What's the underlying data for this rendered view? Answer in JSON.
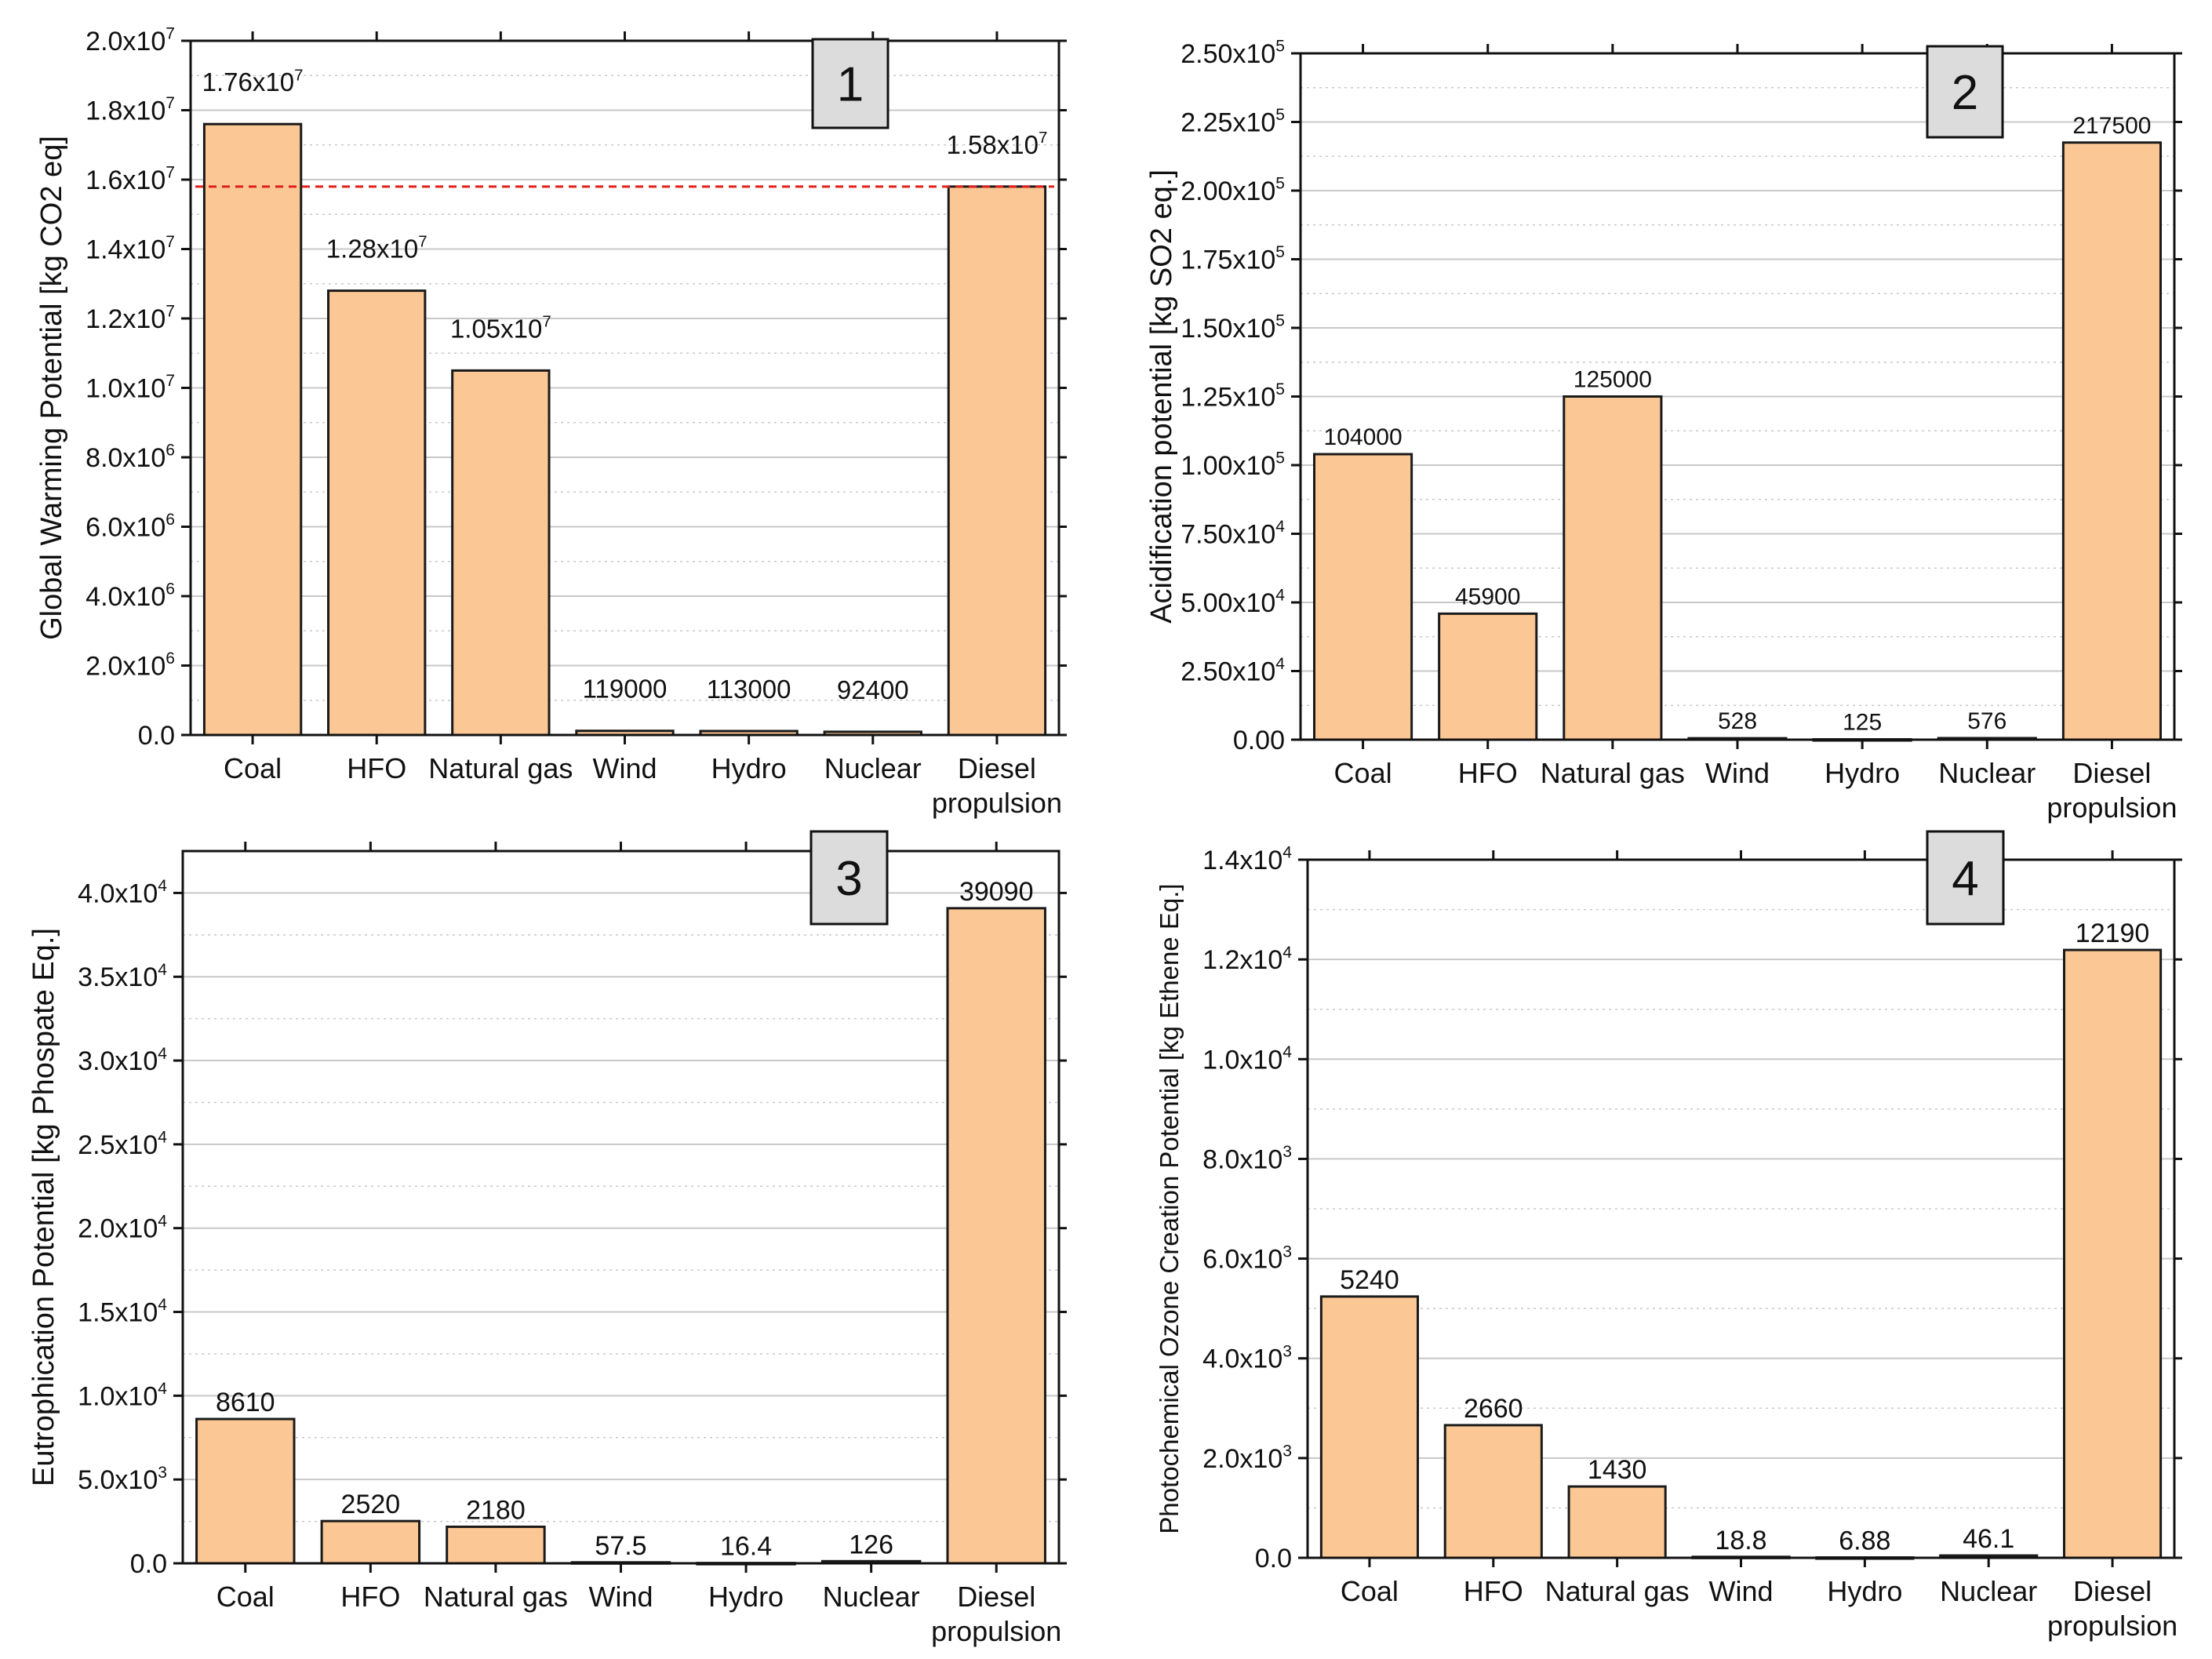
{
  "colors": {
    "bar": "#FBC794",
    "bar_stroke": "#1a1a1a",
    "grid": "#c8c8c8",
    "ref_line": "#e0201b",
    "badge_bg": "#dcdcdc"
  },
  "chart_data": [
    {
      "id": "gwp",
      "type": "bar",
      "badge": "1",
      "ylabel": "Global Warming Potential [kg CO2 eq]",
      "categories": [
        "Coal",
        "HFO",
        "Natural gas",
        "Wind",
        "Hydro",
        "Nuclear",
        "Diesel\npropulsion"
      ],
      "values": [
        17600000,
        12800000,
        10500000,
        119000,
        113000,
        92400,
        15800000
      ],
      "value_labels": [
        "1.76x10^7",
        "1.28x10^7",
        "1.05x10^7",
        "119000",
        "113000",
        "92400",
        "1.58x10^7"
      ],
      "ylim": [
        0,
        20000000
      ],
      "yticks": [
        0,
        2000000,
        4000000,
        6000000,
        8000000,
        10000000,
        12000000,
        14000000,
        16000000,
        18000000,
        20000000
      ],
      "ytick_labels": [
        "0.0",
        "2.0x10^6",
        "4.0x10^6",
        "6.0x10^6",
        "8.0x10^6",
        "1.0x10^7",
        "1.2x10^7",
        "1.4x10^7",
        "1.6x10^7",
        "1.8x10^7",
        "2.0x10^7"
      ],
      "reference_line": 15800000,
      "grid": true
    },
    {
      "id": "ap",
      "type": "bar",
      "badge": "2",
      "ylabel": "Acidification potential [kg SO2 eq.]",
      "categories": [
        "Coal",
        "HFO",
        "Natural gas",
        "Wind",
        "Hydro",
        "Nuclear",
        "Diesel\npropulsion"
      ],
      "values": [
        104000,
        45900,
        125000,
        528,
        125,
        576,
        217500
      ],
      "value_labels": [
        "104000",
        "45900",
        "125000",
        "528",
        "125",
        "576",
        "217500"
      ],
      "ylim": [
        0,
        250000
      ],
      "yticks": [
        0,
        25000,
        50000,
        75000,
        100000,
        125000,
        150000,
        175000,
        200000,
        225000,
        250000
      ],
      "ytick_labels": [
        "0.00",
        "2.50x10^4",
        "5.00x10^4",
        "7.50x10^4",
        "1.00x10^5",
        "1.25x10^5",
        "1.50x10^5",
        "1.75x10^5",
        "2.00x10^5",
        "2.25x10^5",
        "2.50x10^5"
      ],
      "grid": true
    },
    {
      "id": "ep",
      "type": "bar",
      "badge": "3",
      "ylabel": "Eutrophication Potential [kg Phospate Eq.]",
      "categories": [
        "Coal",
        "HFO",
        "Natural gas",
        "Wind",
        "Hydro",
        "Nuclear",
        "Diesel\npropulsion"
      ],
      "values": [
        8610,
        2520,
        2180,
        57.5,
        16.4,
        126,
        39090
      ],
      "value_labels": [
        "8610",
        "2520",
        "2180",
        "57.5",
        "16.4",
        "126",
        "39090"
      ],
      "ylim": [
        0,
        42500
      ],
      "yticks": [
        0,
        5000,
        10000,
        15000,
        20000,
        25000,
        30000,
        35000,
        40000
      ],
      "ytick_labels": [
        "0.0",
        "5.0x10^3",
        "1.0x10^4",
        "1.5x10^4",
        "2.0x10^4",
        "2.5x10^4",
        "3.0x10^4",
        "3.5x10^4",
        "4.0x10^4"
      ],
      "grid": true
    },
    {
      "id": "pocp",
      "type": "bar",
      "badge": "4",
      "ylabel": "Photochemical Ozone Creation Potential [kg Ethene Eq.]",
      "categories": [
        "Coal",
        "HFO",
        "Natural gas",
        "Wind",
        "Hydro",
        "Nuclear",
        "Diesel\npropulsion"
      ],
      "values": [
        5240,
        2660,
        1430,
        18.8,
        6.88,
        46.1,
        12190
      ],
      "value_labels": [
        "5240",
        "2660",
        "1430",
        "18.8",
        "6.88",
        "46.1",
        "12190"
      ],
      "ylim": [
        0,
        14000
      ],
      "yticks": [
        0,
        2000,
        4000,
        6000,
        8000,
        10000,
        12000,
        14000
      ],
      "ytick_labels": [
        "0.0",
        "2.0x10^3",
        "4.0x10^3",
        "6.0x10^3",
        "8.0x10^3",
        "1.0x10^4",
        "1.2x10^4",
        "1.4x10^4"
      ],
      "grid": true
    }
  ]
}
